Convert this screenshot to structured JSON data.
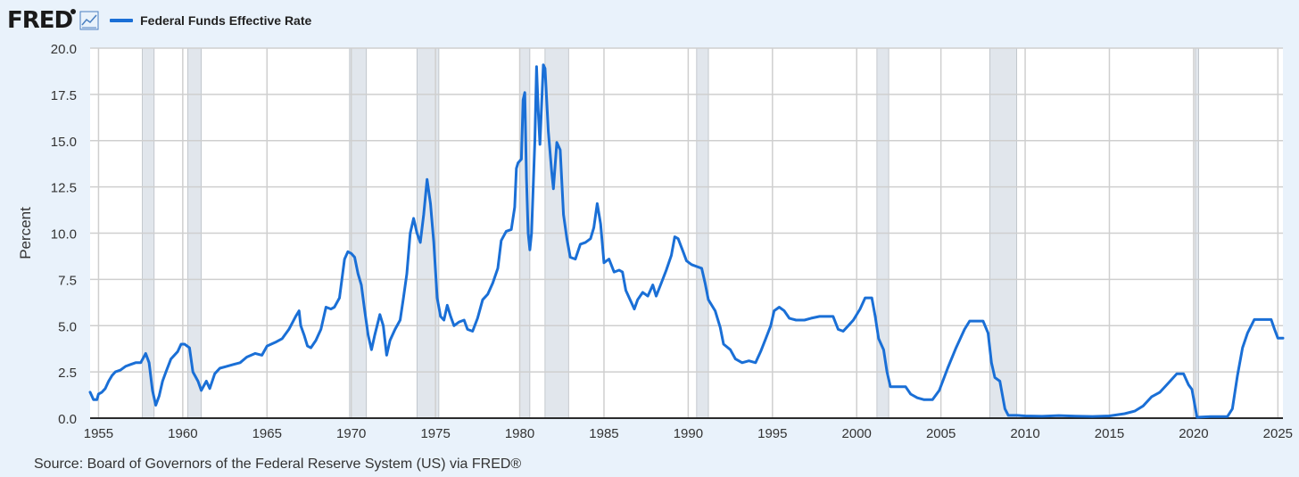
{
  "brand": {
    "logo_text": "FRED",
    "graph_icon": "line-graph-icon"
  },
  "chart_data": {
    "type": "line",
    "series": [
      {
        "name": "Federal Funds Effective Rate",
        "color": "#1a6fd6",
        "points": [
          [
            1954.5,
            1.4
          ],
          [
            1954.7,
            1.0
          ],
          [
            1954.9,
            1.0
          ],
          [
            1955.0,
            1.3
          ],
          [
            1955.2,
            1.4
          ],
          [
            1955.4,
            1.6
          ],
          [
            1955.6,
            2.0
          ],
          [
            1955.8,
            2.3
          ],
          [
            1956.0,
            2.5
          ],
          [
            1956.3,
            2.6
          ],
          [
            1956.6,
            2.8
          ],
          [
            1956.9,
            2.9
          ],
          [
            1957.2,
            3.0
          ],
          [
            1957.5,
            3.0
          ],
          [
            1957.8,
            3.5
          ],
          [
            1958.0,
            3.0
          ],
          [
            1958.2,
            1.5
          ],
          [
            1958.4,
            0.7
          ],
          [
            1958.6,
            1.2
          ],
          [
            1958.8,
            2.0
          ],
          [
            1959.0,
            2.5
          ],
          [
            1959.3,
            3.2
          ],
          [
            1959.7,
            3.6
          ],
          [
            1959.9,
            4.0
          ],
          [
            1960.1,
            4.0
          ],
          [
            1960.4,
            3.8
          ],
          [
            1960.6,
            2.5
          ],
          [
            1960.9,
            2.0
          ],
          [
            1961.1,
            1.5
          ],
          [
            1961.4,
            2.0
          ],
          [
            1961.6,
            1.6
          ],
          [
            1961.9,
            2.4
          ],
          [
            1962.2,
            2.7
          ],
          [
            1962.6,
            2.8
          ],
          [
            1963.0,
            2.9
          ],
          [
            1963.4,
            3.0
          ],
          [
            1963.8,
            3.3
          ],
          [
            1964.3,
            3.5
          ],
          [
            1964.7,
            3.4
          ],
          [
            1965.0,
            3.9
          ],
          [
            1965.5,
            4.1
          ],
          [
            1965.9,
            4.3
          ],
          [
            1966.3,
            4.8
          ],
          [
            1966.7,
            5.5
          ],
          [
            1966.9,
            5.8
          ],
          [
            1967.0,
            5.0
          ],
          [
            1967.2,
            4.5
          ],
          [
            1967.4,
            3.9
          ],
          [
            1967.6,
            3.8
          ],
          [
            1967.9,
            4.2
          ],
          [
            1968.2,
            4.8
          ],
          [
            1968.5,
            6.0
          ],
          [
            1968.8,
            5.9
          ],
          [
            1969.0,
            6.0
          ],
          [
            1969.3,
            6.5
          ],
          [
            1969.6,
            8.6
          ],
          [
            1969.8,
            9.0
          ],
          [
            1970.0,
            8.9
          ],
          [
            1970.2,
            8.7
          ],
          [
            1970.4,
            7.8
          ],
          [
            1970.6,
            7.2
          ],
          [
            1970.8,
            5.8
          ],
          [
            1971.0,
            4.5
          ],
          [
            1971.2,
            3.7
          ],
          [
            1971.4,
            4.5
          ],
          [
            1971.7,
            5.6
          ],
          [
            1971.9,
            5.0
          ],
          [
            1972.1,
            3.4
          ],
          [
            1972.3,
            4.2
          ],
          [
            1972.6,
            4.8
          ],
          [
            1972.9,
            5.3
          ],
          [
            1973.1,
            6.5
          ],
          [
            1973.3,
            7.8
          ],
          [
            1973.5,
            10.0
          ],
          [
            1973.7,
            10.8
          ],
          [
            1973.9,
            10.0
          ],
          [
            1974.1,
            9.5
          ],
          [
            1974.3,
            11.0
          ],
          [
            1974.5,
            12.9
          ],
          [
            1974.7,
            11.6
          ],
          [
            1974.9,
            9.5
          ],
          [
            1975.1,
            6.5
          ],
          [
            1975.3,
            5.5
          ],
          [
            1975.5,
            5.3
          ],
          [
            1975.7,
            6.1
          ],
          [
            1975.9,
            5.5
          ],
          [
            1976.1,
            5.0
          ],
          [
            1976.4,
            5.2
          ],
          [
            1976.7,
            5.3
          ],
          [
            1976.9,
            4.8
          ],
          [
            1977.2,
            4.7
          ],
          [
            1977.5,
            5.4
          ],
          [
            1977.8,
            6.4
          ],
          [
            1978.1,
            6.7
          ],
          [
            1978.4,
            7.3
          ],
          [
            1978.7,
            8.1
          ],
          [
            1978.9,
            9.6
          ],
          [
            1979.2,
            10.1
          ],
          [
            1979.5,
            10.2
          ],
          [
            1979.7,
            11.4
          ],
          [
            1979.8,
            13.5
          ],
          [
            1979.9,
            13.8
          ],
          [
            1980.1,
            14.0
          ],
          [
            1980.2,
            17.2
          ],
          [
            1980.3,
            17.6
          ],
          [
            1980.4,
            13.0
          ],
          [
            1980.5,
            10.0
          ],
          [
            1980.6,
            9.1
          ],
          [
            1980.7,
            10.0
          ],
          [
            1980.9,
            15.0
          ],
          [
            1981.0,
            19.0
          ],
          [
            1981.1,
            16.6
          ],
          [
            1981.2,
            14.8
          ],
          [
            1981.4,
            19.1
          ],
          [
            1981.5,
            18.9
          ],
          [
            1981.7,
            15.5
          ],
          [
            1981.9,
            13.3
          ],
          [
            1982.0,
            12.4
          ],
          [
            1982.2,
            14.9
          ],
          [
            1982.4,
            14.5
          ],
          [
            1982.6,
            11.0
          ],
          [
            1982.8,
            9.7
          ],
          [
            1983.0,
            8.7
          ],
          [
            1983.3,
            8.6
          ],
          [
            1983.6,
            9.4
          ],
          [
            1983.9,
            9.5
          ],
          [
            1984.2,
            9.7
          ],
          [
            1984.4,
            10.3
          ],
          [
            1984.6,
            11.6
          ],
          [
            1984.8,
            10.5
          ],
          [
            1985.0,
            8.4
          ],
          [
            1985.3,
            8.6
          ],
          [
            1985.6,
            7.9
          ],
          [
            1985.9,
            8.0
          ],
          [
            1986.1,
            7.9
          ],
          [
            1986.3,
            6.9
          ],
          [
            1986.6,
            6.3
          ],
          [
            1986.8,
            5.9
          ],
          [
            1987.0,
            6.4
          ],
          [
            1987.3,
            6.8
          ],
          [
            1987.6,
            6.6
          ],
          [
            1987.9,
            7.2
          ],
          [
            1988.1,
            6.6
          ],
          [
            1988.4,
            7.3
          ],
          [
            1988.7,
            8.0
          ],
          [
            1989.0,
            8.8
          ],
          [
            1989.2,
            9.8
          ],
          [
            1989.4,
            9.7
          ],
          [
            1989.7,
            9.0
          ],
          [
            1989.9,
            8.5
          ],
          [
            1990.2,
            8.3
          ],
          [
            1990.5,
            8.2
          ],
          [
            1990.8,
            8.1
          ],
          [
            1991.0,
            7.3
          ],
          [
            1991.2,
            6.4
          ],
          [
            1991.6,
            5.8
          ],
          [
            1991.9,
            4.9
          ],
          [
            1992.1,
            4.0
          ],
          [
            1992.5,
            3.7
          ],
          [
            1992.8,
            3.2
          ],
          [
            1993.2,
            3.0
          ],
          [
            1993.6,
            3.1
          ],
          [
            1994.0,
            3.0
          ],
          [
            1994.3,
            3.6
          ],
          [
            1994.6,
            4.3
          ],
          [
            1994.9,
            5.0
          ],
          [
            1995.1,
            5.8
          ],
          [
            1995.4,
            6.0
          ],
          [
            1995.7,
            5.8
          ],
          [
            1996.0,
            5.4
          ],
          [
            1996.4,
            5.3
          ],
          [
            1996.9,
            5.3
          ],
          [
            1997.3,
            5.4
          ],
          [
            1997.8,
            5.5
          ],
          [
            1998.2,
            5.5
          ],
          [
            1998.6,
            5.5
          ],
          [
            1998.9,
            4.8
          ],
          [
            1999.2,
            4.7
          ],
          [
            1999.5,
            5.0
          ],
          [
            1999.8,
            5.3
          ],
          [
            2000.2,
            5.9
          ],
          [
            2000.5,
            6.5
          ],
          [
            2000.9,
            6.5
          ],
          [
            2001.1,
            5.5
          ],
          [
            2001.3,
            4.3
          ],
          [
            2001.6,
            3.7
          ],
          [
            2001.8,
            2.5
          ],
          [
            2002.0,
            1.7
          ],
          [
            2002.5,
            1.7
          ],
          [
            2002.9,
            1.7
          ],
          [
            2003.2,
            1.3
          ],
          [
            2003.6,
            1.1
          ],
          [
            2004.0,
            1.0
          ],
          [
            2004.5,
            1.0
          ],
          [
            2004.9,
            1.5
          ],
          [
            2005.4,
            2.7
          ],
          [
            2005.9,
            3.8
          ],
          [
            2006.4,
            4.8
          ],
          [
            2006.7,
            5.25
          ],
          [
            2007.0,
            5.25
          ],
          [
            2007.5,
            5.25
          ],
          [
            2007.8,
            4.6
          ],
          [
            2008.0,
            3.0
          ],
          [
            2008.2,
            2.2
          ],
          [
            2008.5,
            2.0
          ],
          [
            2008.8,
            0.5
          ],
          [
            2009.0,
            0.15
          ],
          [
            2009.5,
            0.15
          ],
          [
            2010.0,
            0.12
          ],
          [
            2011.0,
            0.1
          ],
          [
            2012.0,
            0.14
          ],
          [
            2013.0,
            0.11
          ],
          [
            2014.0,
            0.09
          ],
          [
            2015.0,
            0.12
          ],
          [
            2015.9,
            0.24
          ],
          [
            2016.5,
            0.38
          ],
          [
            2017.0,
            0.66
          ],
          [
            2017.5,
            1.15
          ],
          [
            2018.0,
            1.4
          ],
          [
            2018.5,
            1.9
          ],
          [
            2019.0,
            2.4
          ],
          [
            2019.4,
            2.4
          ],
          [
            2019.7,
            1.8
          ],
          [
            2019.9,
            1.55
          ],
          [
            2020.2,
            0.05
          ],
          [
            2021.0,
            0.08
          ],
          [
            2022.0,
            0.08
          ],
          [
            2022.3,
            0.5
          ],
          [
            2022.6,
            2.3
          ],
          [
            2022.9,
            3.8
          ],
          [
            2023.2,
            4.6
          ],
          [
            2023.6,
            5.33
          ],
          [
            2024.0,
            5.33
          ],
          [
            2024.6,
            5.33
          ],
          [
            2024.8,
            4.8
          ],
          [
            2025.0,
            4.33
          ],
          [
            2025.3,
            4.33
          ]
        ]
      }
    ],
    "recessions": [
      [
        1957.6,
        1958.3
      ],
      [
        1960.3,
        1961.1
      ],
      [
        1969.9,
        1970.9
      ],
      [
        1973.9,
        1975.2
      ],
      [
        1980.0,
        1980.6
      ],
      [
        1981.5,
        1982.9
      ],
      [
        1990.5,
        1991.2
      ],
      [
        2001.2,
        2001.9
      ],
      [
        2007.9,
        2009.5
      ],
      [
        2020.1,
        2020.3
      ]
    ],
    "xlim": [
      1954.5,
      2025.3
    ],
    "ylim": [
      0,
      20
    ],
    "x_ticks": [
      "1955",
      "1960",
      "1965",
      "1970",
      "1975",
      "1980",
      "1985",
      "1990",
      "1995",
      "2000",
      "2005",
      "2010",
      "2015",
      "2020",
      "2025"
    ],
    "y_ticks": [
      "0.0",
      "2.5",
      "5.0",
      "7.5",
      "10.0",
      "12.5",
      "15.0",
      "17.5",
      "20.0"
    ],
    "ylabel": "Percent",
    "xlabel": "",
    "grid": true,
    "legend_position": "top-left"
  },
  "source_text": "Source: Board of Governors of the Federal Reserve System (US) via FRED®",
  "colors": {
    "background": "#e9f2fb",
    "plot_bg": "#ffffff",
    "line": "#1a6fd6",
    "recession": "#e1e6ec",
    "grid": "#cfcfcf"
  }
}
